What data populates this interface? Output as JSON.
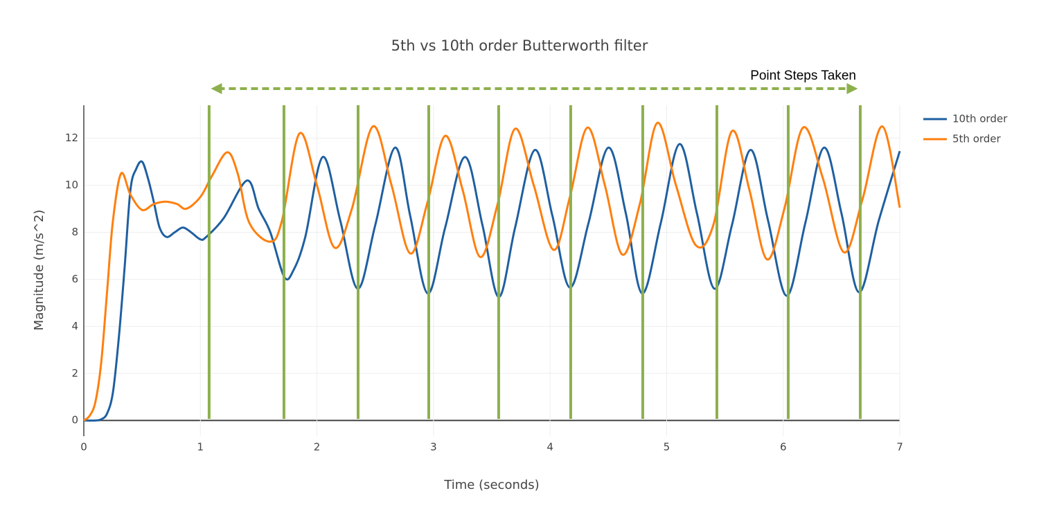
{
  "chart_data": {
    "type": "line",
    "title": "5th vs 10th order Butterworth filter",
    "x_label": "Time (seconds)",
    "y_label": "Magnitude (m/s^2)",
    "xlim": [
      0,
      7
    ],
    "ylim": [
      -0.67,
      13.4
    ],
    "xticks": [
      0,
      1,
      2,
      3,
      4,
      5,
      6,
      7
    ],
    "yticks": [
      0,
      2,
      4,
      6,
      8,
      10,
      12
    ],
    "grid": true,
    "legend": "top-right",
    "series": [
      {
        "name": "10th order",
        "color": "#1f5fa0",
        "x": [
          0,
          0.1,
          0.15,
          0.2,
          0.25,
          0.3,
          0.35,
          0.4,
          0.45,
          0.5,
          0.55,
          0.6,
          0.65,
          0.71,
          0.78,
          0.85,
          0.92,
          1.0,
          1.05,
          1.2,
          1.4,
          1.5,
          1.6,
          1.72,
          1.8,
          1.9,
          2.05,
          2.2,
          2.35,
          2.5,
          2.67,
          2.8,
          2.95,
          3.1,
          3.27,
          3.42,
          3.56,
          3.7,
          3.87,
          4.02,
          4.17,
          4.33,
          4.5,
          4.65,
          4.79,
          4.95,
          5.11,
          5.26,
          5.41,
          5.56,
          5.72,
          5.87,
          6.03,
          6.19,
          6.35,
          6.5,
          6.65,
          6.82,
          7.0
        ],
        "values": [
          0,
          0,
          0.05,
          0.3,
          1.2,
          3.5,
          6.5,
          9.8,
          10.7,
          11.0,
          10.3,
          9.3,
          8.2,
          7.8,
          8.0,
          8.2,
          8.0,
          7.7,
          7.8,
          8.6,
          10.2,
          9.0,
          8.0,
          6.1,
          6.4,
          7.8,
          11.2,
          8.5,
          5.6,
          8.3,
          11.6,
          8.7,
          5.4,
          8.2,
          11.2,
          8.3,
          5.25,
          8.2,
          11.5,
          8.7,
          5.65,
          8.4,
          11.6,
          8.8,
          5.4,
          8.4,
          11.75,
          8.8,
          5.6,
          8.3,
          11.5,
          8.5,
          5.3,
          8.4,
          11.6,
          8.8,
          5.45,
          8.5,
          11.45
        ]
      },
      {
        "name": "5th order",
        "color": "#ff7f0e",
        "x": [
          0,
          0.05,
          0.1,
          0.15,
          0.2,
          0.25,
          0.32,
          0.4,
          0.5,
          0.6,
          0.7,
          0.8,
          0.88,
          1.0,
          1.1,
          1.23,
          1.32,
          1.42,
          1.6,
          1.7,
          1.85,
          2.0,
          2.15,
          2.3,
          2.48,
          2.64,
          2.8,
          2.95,
          3.1,
          3.25,
          3.4,
          3.55,
          3.7,
          3.86,
          4.03,
          4.17,
          4.32,
          4.47,
          4.62,
          4.77,
          4.92,
          5.08,
          5.25,
          5.4,
          5.56,
          5.71,
          5.86,
          6.01,
          6.17,
          6.34,
          6.52,
          6.68,
          6.85,
          7.0
        ],
        "values": [
          0,
          0.2,
          0.8,
          2.5,
          5.5,
          8.5,
          10.5,
          9.6,
          8.95,
          9.2,
          9.3,
          9.2,
          9.0,
          9.5,
          10.4,
          11.4,
          10.5,
          8.4,
          7.6,
          8.5,
          12.2,
          10.0,
          7.35,
          9.0,
          12.5,
          10.0,
          7.1,
          9.3,
          12.1,
          9.8,
          6.95,
          9.2,
          12.4,
          10.0,
          7.25,
          9.5,
          12.45,
          10.0,
          7.05,
          9.2,
          12.65,
          10.0,
          7.45,
          8.3,
          12.3,
          9.8,
          6.85,
          9.0,
          12.45,
          10.3,
          7.15,
          9.4,
          12.5,
          9.05
        ]
      }
    ],
    "step_lines": {
      "color": "#8db04d",
      "x": [
        1.075,
        1.717,
        2.353,
        2.959,
        3.559,
        4.177,
        4.795,
        5.431,
        6.043,
        6.661
      ]
    },
    "annotation": {
      "text": "Point Steps Taken",
      "color": "#8db04d",
      "arrow_x": [
        1.09,
        6.64
      ]
    }
  }
}
